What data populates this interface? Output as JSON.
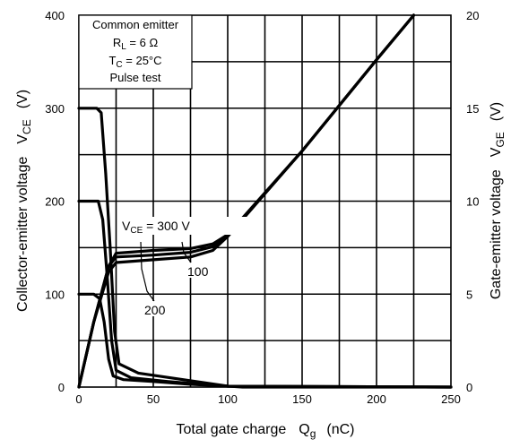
{
  "chart_data": {
    "type": "line",
    "x_axis": {
      "label": "Total gate charge",
      "symbol": "Q",
      "symbol_sub": "g",
      "unit": "(nC)",
      "range": [
        0,
        250
      ],
      "ticks": [
        "0",
        "50",
        "100",
        "150",
        "200",
        "250"
      ],
      "gridlines_every": 25
    },
    "y_left": {
      "label": "Collector-emitter voltage",
      "symbol": "V",
      "symbol_sub": "CE",
      "unit": "(V)",
      "range": [
        0,
        400
      ],
      "ticks": [
        "0",
        "100",
        "200",
        "300",
        "400"
      ],
      "gridlines_every": 50
    },
    "y_right": {
      "label": "Gate-emitter voltage",
      "symbol": "V",
      "symbol_sub": "GE",
      "unit": "(V)",
      "range": [
        0,
        20
      ],
      "ticks": [
        "0",
        "5",
        "10",
        "15",
        "20"
      ]
    },
    "grid": true,
    "conditions": {
      "line1": "Common emitter",
      "line2_main": "R",
      "line2_sub": "L",
      "line2_rest": " = 6 Ω",
      "line3_main": "T",
      "line3_sub": "C",
      "line3_rest": " = 25°C",
      "line4": "Pulse test",
      "placement": "top-left"
    },
    "annotations": {
      "vce_label_main": "V",
      "vce_label_sub": "CE",
      "vce_label_rest": " = 300 V",
      "label_100": "100",
      "label_200": "200"
    },
    "series": [
      {
        "axis": "left",
        "values": [
          [
            0,
            100
          ],
          [
            10,
            100
          ],
          [
            14,
            95
          ],
          [
            17,
            70
          ],
          [
            20,
            30
          ],
          [
            23,
            12
          ],
          [
            30,
            8
          ],
          [
            50,
            6
          ],
          [
            75,
            3
          ],
          [
            100,
            1
          ],
          [
            250,
            0
          ]
        ]
      },
      {
        "axis": "left",
        "values": [
          [
            0,
            200
          ],
          [
            13,
            200
          ],
          [
            16,
            180
          ],
          [
            19,
            120
          ],
          [
            22,
            50
          ],
          [
            25,
            18
          ],
          [
            35,
            10
          ],
          [
            60,
            6
          ],
          [
            90,
            2
          ],
          [
            110,
            0
          ],
          [
            250,
            0
          ]
        ]
      },
      {
        "axis": "left",
        "values": [
          [
            0,
            300
          ],
          [
            12,
            300
          ],
          [
            15,
            295
          ],
          [
            18,
            230
          ],
          [
            21,
            150
          ],
          [
            24,
            60
          ],
          [
            27,
            25
          ],
          [
            40,
            15
          ],
          [
            70,
            8
          ],
          [
            100,
            1
          ],
          [
            250,
            0
          ]
        ]
      },
      {
        "axis": "right",
        "values": [
          [
            0,
            0
          ],
          [
            10,
            3.5
          ],
          [
            20,
            6.5
          ],
          [
            25,
            7.2
          ],
          [
            50,
            7.35
          ],
          [
            75,
            7.45
          ],
          [
            90,
            7.7
          ],
          [
            100,
            8.2
          ],
          [
            150,
            12.7
          ],
          [
            200,
            17.6
          ],
          [
            225,
            20
          ]
        ]
      },
      {
        "axis": "right",
        "values": [
          [
            0,
            0
          ],
          [
            10,
            3.5
          ],
          [
            20,
            6.5
          ],
          [
            25,
            7.0
          ],
          [
            50,
            7.1
          ],
          [
            75,
            7.25
          ],
          [
            90,
            7.55
          ],
          [
            100,
            8.15
          ],
          [
            150,
            12.7
          ],
          [
            200,
            17.6
          ],
          [
            225,
            20
          ]
        ]
      },
      {
        "axis": "right",
        "values": [
          [
            0,
            0
          ],
          [
            10,
            3.5
          ],
          [
            20,
            6.2
          ],
          [
            25,
            6.7
          ],
          [
            50,
            6.85
          ],
          [
            75,
            7.0
          ],
          [
            90,
            7.35
          ],
          [
            100,
            8.1
          ],
          [
            150,
            12.7
          ],
          [
            200,
            17.6
          ],
          [
            225,
            20
          ]
        ]
      }
    ]
  }
}
